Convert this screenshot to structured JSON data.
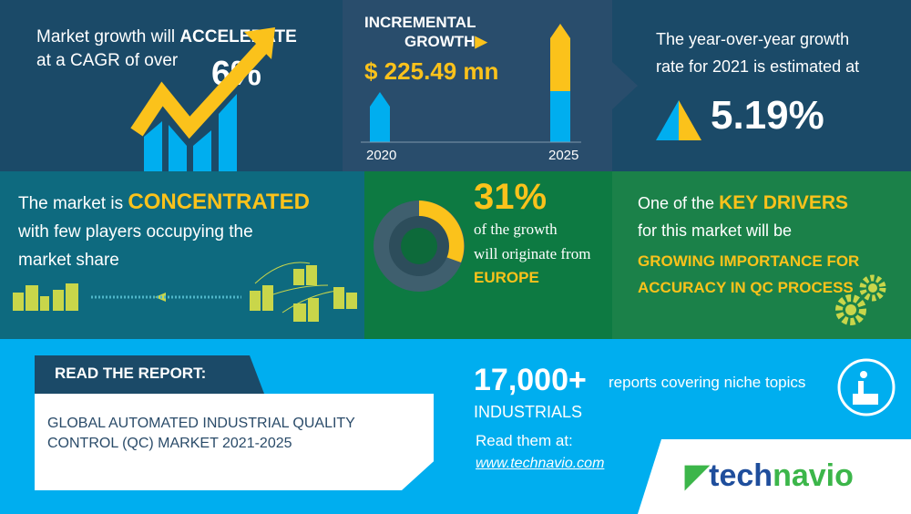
{
  "cagr": {
    "line1_prefix": "Market growth will ",
    "line1_emph": "ACCELERATE",
    "line2": "at a CAGR of over",
    "value": "6%"
  },
  "incremental": {
    "title_line1": "INCREMENTAL",
    "title_line2": "GROWTH",
    "value": "$ 225.49 mn",
    "year_start": "2020",
    "year_end": "2025"
  },
  "yoy": {
    "line1": "The year-over-year growth",
    "line2": "rate for 2021 is estimated at",
    "value": "5.19%"
  },
  "concentration": {
    "line1_prefix": "The market is ",
    "line1_emph": "CONCENTRATED",
    "line2": "with few players occupying the",
    "line3": "market share"
  },
  "region": {
    "value": "31%",
    "line1": "of the growth",
    "line2": "will originate from",
    "region": "EUROPE",
    "share": 0.31
  },
  "drivers": {
    "line1_prefix": "One of the ",
    "line1_emph": "KEY DRIVERS",
    "line2": "for this market will be",
    "driver_line1": "GROWING IMPORTANCE FOR",
    "driver_line2": "ACCURACY IN QC PROCESS"
  },
  "report": {
    "label": "READ THE REPORT:",
    "title_line1": "GLOBAL AUTOMATED INDUSTRIAL QUALITY",
    "title_line2": "CONTROL (QC) MARKET 2021-2025"
  },
  "promo": {
    "count": "17,000+",
    "count_text": "reports covering niche topics",
    "category": "INDUSTRIALS",
    "read_at": "Read them at:",
    "url": "www.technavio.com"
  },
  "brand": {
    "logo_part1": "tech",
    "logo_part2": "navio"
  },
  "colors": {
    "yellow": "#fbc21b",
    "blue": "#00aeef",
    "navy": "#1b4a68",
    "teal": "#0e6a7f",
    "green": "#0d7a42",
    "logo_blue": "#1f4e9c",
    "logo_green": "#3cb64a"
  }
}
